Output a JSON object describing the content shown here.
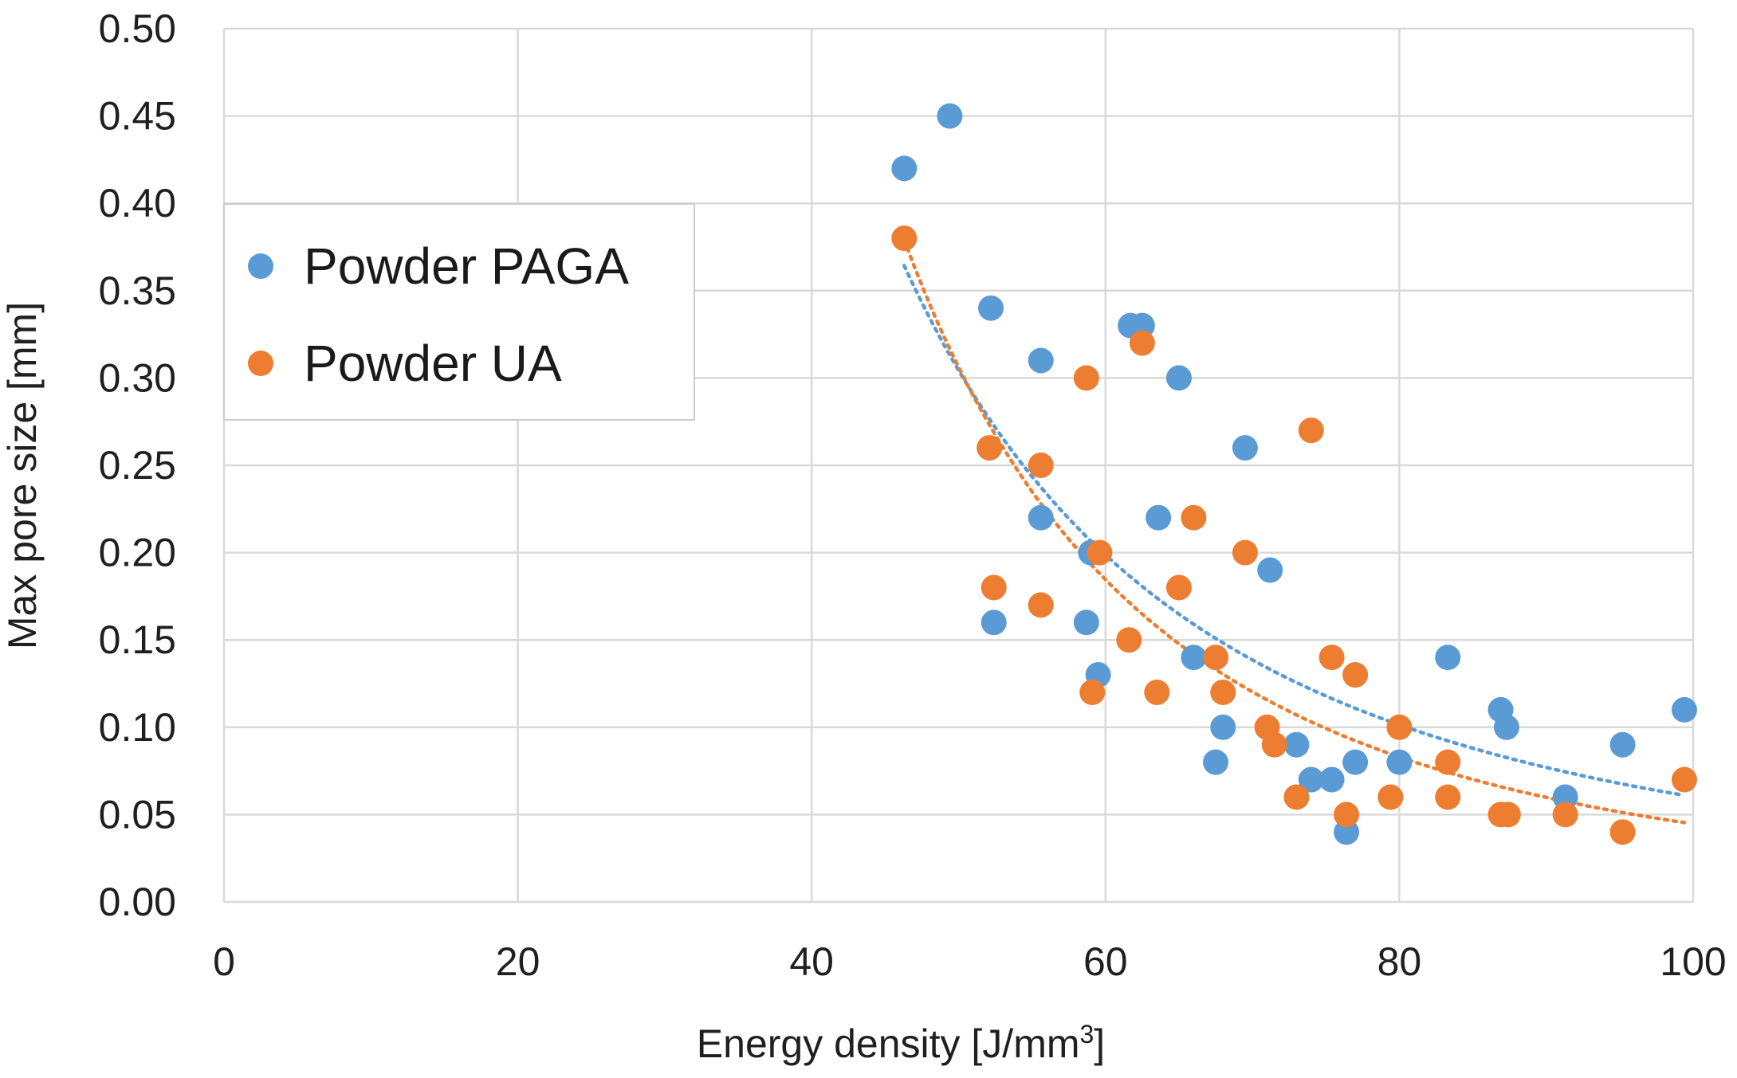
{
  "chart_data": {
    "type": "scatter",
    "title": "",
    "xlabel": "Energy density [J/mm",
    "xlabel_sup": "3",
    "xlabel_end": "]",
    "ylabel": "Max pore size [mm]",
    "xlim": [
      0,
      100
    ],
    "ylim": [
      0,
      0.5
    ],
    "x_ticks": [
      0,
      20,
      40,
      60,
      80,
      100
    ],
    "y_ticks": [
      "0.00",
      "0.05",
      "0.10",
      "0.15",
      "0.20",
      "0.25",
      "0.30",
      "0.35",
      "0.40",
      "0.45",
      "0.50"
    ],
    "grid": true,
    "legend_position": "left-middle",
    "series": [
      {
        "name": "Powder PAGA",
        "color": "#5b9bd5",
        "trendline": "power",
        "points": [
          [
            46.3,
            0.42
          ],
          [
            49.4,
            0.45
          ],
          [
            52.2,
            0.34
          ],
          [
            52.4,
            0.16
          ],
          [
            55.6,
            0.31
          ],
          [
            55.6,
            0.22
          ],
          [
            58.7,
            0.16
          ],
          [
            59.0,
            0.2
          ],
          [
            59.5,
            0.13
          ],
          [
            61.7,
            0.33
          ],
          [
            62.5,
            0.33
          ],
          [
            63.6,
            0.22
          ],
          [
            65.0,
            0.3
          ],
          [
            66.0,
            0.14
          ],
          [
            67.5,
            0.08
          ],
          [
            68.0,
            0.1
          ],
          [
            69.5,
            0.26
          ],
          [
            71.2,
            0.19
          ],
          [
            73.0,
            0.09
          ],
          [
            74.0,
            0.07
          ],
          [
            75.4,
            0.07
          ],
          [
            76.4,
            0.04
          ],
          [
            77.0,
            0.08
          ],
          [
            80.0,
            0.08
          ],
          [
            83.3,
            0.14
          ],
          [
            86.9,
            0.11
          ],
          [
            87.3,
            0.1
          ],
          [
            91.3,
            0.06
          ],
          [
            95.2,
            0.09
          ],
          [
            99.4,
            0.11
          ]
        ]
      },
      {
        "name": "Powder UA",
        "color": "#ed7d31",
        "trendline": "power",
        "points": [
          [
            46.3,
            0.38
          ],
          [
            52.1,
            0.26
          ],
          [
            52.4,
            0.18
          ],
          [
            55.6,
            0.25
          ],
          [
            55.6,
            0.17
          ],
          [
            58.7,
            0.3
          ],
          [
            59.1,
            0.12
          ],
          [
            59.6,
            0.2
          ],
          [
            61.6,
            0.15
          ],
          [
            62.5,
            0.32
          ],
          [
            63.5,
            0.12
          ],
          [
            65.0,
            0.18
          ],
          [
            66.0,
            0.22
          ],
          [
            67.5,
            0.14
          ],
          [
            68.0,
            0.12
          ],
          [
            69.5,
            0.2
          ],
          [
            71.0,
            0.1
          ],
          [
            71.5,
            0.09
          ],
          [
            73.0,
            0.06
          ],
          [
            74.0,
            0.27
          ],
          [
            75.4,
            0.14
          ],
          [
            76.4,
            0.05
          ],
          [
            77.0,
            0.13
          ],
          [
            79.4,
            0.06
          ],
          [
            80.0,
            0.1
          ],
          [
            83.3,
            0.08
          ],
          [
            83.3,
            0.06
          ],
          [
            86.9,
            0.05
          ],
          [
            87.4,
            0.05
          ],
          [
            91.3,
            0.05
          ],
          [
            95.2,
            0.04
          ],
          [
            99.4,
            0.07
          ]
        ]
      }
    ]
  }
}
